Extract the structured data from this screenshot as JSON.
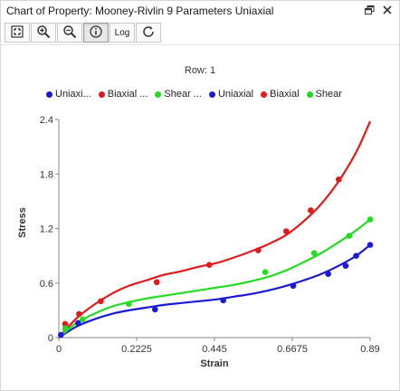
{
  "window": {
    "title": "Chart of Property: Mooney-Rivlin 9 Parameters Uniaxial"
  },
  "title_icons": [
    "restore-icon",
    "close-icon"
  ],
  "toolbar": {
    "buttons": [
      {
        "name": "fit-view-button",
        "icon": "fit-icon"
      },
      {
        "name": "zoom-in-button",
        "icon": "zoom-in-icon"
      },
      {
        "name": "zoom-out-button",
        "icon": "zoom-out-icon"
      },
      {
        "name": "info-button",
        "icon": "info-icon",
        "active": true
      },
      {
        "name": "log-button",
        "label": "Log"
      },
      {
        "name": "refresh-button",
        "icon": "refresh-icon"
      }
    ]
  },
  "chart_data": {
    "type": "scatter",
    "title": "Row: 1",
    "xlabel": "Strain",
    "ylabel": "Stress",
    "xlim": [
      0,
      0.89
    ],
    "ylim": [
      0,
      2.4
    ],
    "xticks": [
      "0",
      "0.2225",
      "0.445",
      "0.6675",
      "0.89"
    ],
    "yticks": [
      "0",
      "0.6",
      "1.2",
      "1.8",
      "2.4"
    ],
    "legend_position": "top",
    "legend": [
      {
        "label": "Uniaxi...",
        "color": "#1a1ad6"
      },
      {
        "label": "Biaxial ...",
        "color": "#e01b1b"
      },
      {
        "label": "Shear ...",
        "color": "#22dd22"
      },
      {
        "label": "Uniaxial",
        "color": "#1a1ad6"
      },
      {
        "label": "Biaxial",
        "color": "#e01b1b"
      },
      {
        "label": "Shear",
        "color": "#22dd22"
      }
    ],
    "curves": [
      {
        "name": "Uniaxial",
        "color": "#1a1ad6",
        "x": [
          0,
          0.05,
          0.1,
          0.15,
          0.2,
          0.25,
          0.3,
          0.35,
          0.4,
          0.45,
          0.5,
          0.55,
          0.6,
          0.65,
          0.7,
          0.75,
          0.8,
          0.85,
          0.89
        ],
        "y": [
          0,
          0.12,
          0.2,
          0.26,
          0.3,
          0.33,
          0.36,
          0.38,
          0.4,
          0.42,
          0.45,
          0.48,
          0.52,
          0.57,
          0.63,
          0.7,
          0.79,
          0.9,
          1.02
        ]
      },
      {
        "name": "Biaxial",
        "color": "#e01b1b",
        "x": [
          0,
          0.05,
          0.1,
          0.15,
          0.2,
          0.25,
          0.3,
          0.35,
          0.4,
          0.45,
          0.5,
          0.55,
          0.6,
          0.65,
          0.7,
          0.75,
          0.8,
          0.85,
          0.89
        ],
        "y": [
          0,
          0.21,
          0.36,
          0.48,
          0.57,
          0.63,
          0.69,
          0.73,
          0.78,
          0.82,
          0.88,
          0.95,
          1.03,
          1.13,
          1.28,
          1.47,
          1.72,
          2.04,
          2.38
        ]
      },
      {
        "name": "Shear",
        "color": "#22dd22",
        "x": [
          0,
          0.05,
          0.1,
          0.15,
          0.2,
          0.25,
          0.3,
          0.35,
          0.4,
          0.45,
          0.5,
          0.55,
          0.6,
          0.65,
          0.7,
          0.75,
          0.8,
          0.85,
          0.89
        ],
        "y": [
          0,
          0.16,
          0.26,
          0.34,
          0.39,
          0.43,
          0.46,
          0.49,
          0.52,
          0.55,
          0.58,
          0.62,
          0.67,
          0.74,
          0.83,
          0.93,
          1.05,
          1.18,
          1.3
        ]
      }
    ],
    "points": [
      {
        "name": "Uniaxial data",
        "color": "#1a1ad6",
        "x": [
          0.006,
          0.055,
          0.275,
          0.47,
          0.67,
          0.77,
          0.82,
          0.85,
          0.89
        ],
        "y": [
          0.03,
          0.16,
          0.31,
          0.41,
          0.57,
          0.7,
          0.79,
          0.9,
          1.02
        ]
      },
      {
        "name": "Biaxial data",
        "color": "#e01b1b",
        "x": [
          0.018,
          0.058,
          0.12,
          0.28,
          0.43,
          0.57,
          0.65,
          0.72,
          0.8
        ],
        "y": [
          0.15,
          0.26,
          0.4,
          0.61,
          0.8,
          0.96,
          1.17,
          1.4,
          1.74
        ]
      },
      {
        "name": "Shear data",
        "color": "#22dd22",
        "x": [
          0.018,
          0.068,
          0.2,
          0.59,
          0.73,
          0.83,
          0.89
        ],
        "y": [
          0.1,
          0.2,
          0.37,
          0.72,
          0.93,
          1.12,
          1.3
        ]
      }
    ]
  }
}
